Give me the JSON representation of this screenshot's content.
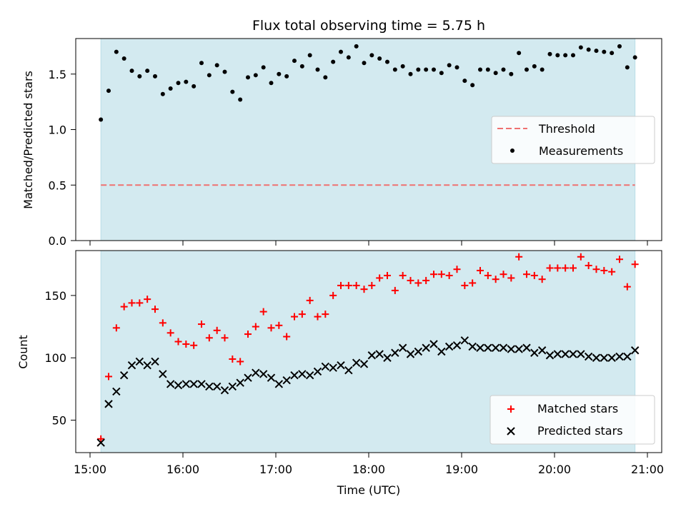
{
  "chart_data": [
    {
      "type": "scatter",
      "title": "Flux total observing time = 5.75 h",
      "ylabel": "Matched/Predicted stars",
      "xlabel": "",
      "xlim": [
        "15:00",
        "21:00"
      ],
      "ylim": [
        0,
        1.82
      ],
      "yticks": [
        "0.0",
        "0.5",
        "1.0",
        "1.5"
      ],
      "grid": false,
      "legend_position": "center-right",
      "shaded_interval": [
        "15:07",
        "20:52"
      ],
      "shade_color": "#d3eaf0",
      "threshold": {
        "name": "Threshold",
        "value": 0.5,
        "color": "#ef7171",
        "style": "dashed"
      },
      "series": [
        {
          "name": "Measurements",
          "color": "#000000",
          "marker": "dot",
          "x": [
            "15:07",
            "15:12",
            "15:17",
            "15:22",
            "15:27",
            "15:32",
            "15:37",
            "15:42",
            "15:47",
            "15:52",
            "15:57",
            "16:02",
            "16:07",
            "16:12",
            "16:17",
            "16:22",
            "16:27",
            "16:32",
            "16:37",
            "16:42",
            "16:47",
            "16:52",
            "16:57",
            "17:02",
            "17:07",
            "17:12",
            "17:17",
            "17:22",
            "17:27",
            "17:32",
            "17:37",
            "17:42",
            "17:47",
            "17:52",
            "17:57",
            "18:02",
            "18:07",
            "18:12",
            "18:17",
            "18:22",
            "18:27",
            "18:32",
            "18:37",
            "18:42",
            "18:47",
            "18:52",
            "18:57",
            "19:02",
            "19:07",
            "19:12",
            "19:17",
            "19:22",
            "19:27",
            "19:32",
            "19:37",
            "19:42",
            "19:47",
            "19:52",
            "19:57",
            "20:02",
            "20:07",
            "20:12",
            "20:17",
            "20:22",
            "20:27",
            "20:32",
            "20:37",
            "20:42",
            "20:47",
            "20:52"
          ],
          "values": [
            1.09,
            1.35,
            1.7,
            1.64,
            1.53,
            1.48,
            1.53,
            1.48,
            1.32,
            1.37,
            1.42,
            1.43,
            1.39,
            1.6,
            1.49,
            1.58,
            1.52,
            1.34,
            1.27,
            1.47,
            1.49,
            1.56,
            1.42,
            1.5,
            1.48,
            1.62,
            1.57,
            1.67,
            1.54,
            1.47,
            1.61,
            1.7,
            1.65,
            1.75,
            1.6,
            1.67,
            1.64,
            1.61,
            1.54,
            1.57,
            1.5,
            1.54,
            1.54,
            1.54,
            1.51,
            1.58,
            1.56,
            1.44,
            1.4,
            1.54,
            1.54,
            1.51,
            1.54,
            1.5,
            1.69,
            1.54,
            1.57,
            1.54,
            1.68,
            1.67,
            1.67,
            1.67,
            1.74,
            1.72,
            1.71,
            1.7,
            1.69,
            1.75,
            1.56,
            1.65
          ]
        }
      ]
    },
    {
      "type": "scatter",
      "title": "",
      "xlabel": "Time (UTC)",
      "ylabel": "Count",
      "xlim": [
        "15:00",
        "21:00"
      ],
      "xticks": [
        "15:00",
        "16:00",
        "17:00",
        "18:00",
        "19:00",
        "20:00",
        "21:00"
      ],
      "ylim": [
        24,
        186
      ],
      "yticks": [
        "50",
        "100",
        "150"
      ],
      "grid": false,
      "legend_position": "bottom-right",
      "shaded_interval": [
        "15:07",
        "20:52"
      ],
      "shade_color": "#d3eaf0",
      "series": [
        {
          "name": "Matched stars",
          "color": "#ff0000",
          "marker": "plus",
          "x": [
            "15:07",
            "15:12",
            "15:17",
            "15:22",
            "15:27",
            "15:32",
            "15:37",
            "15:42",
            "15:47",
            "15:52",
            "15:57",
            "16:02",
            "16:07",
            "16:12",
            "16:17",
            "16:22",
            "16:27",
            "16:32",
            "16:37",
            "16:42",
            "16:47",
            "16:52",
            "16:57",
            "17:02",
            "17:07",
            "17:12",
            "17:17",
            "17:22",
            "17:27",
            "17:32",
            "17:37",
            "17:42",
            "17:47",
            "17:52",
            "17:57",
            "18:02",
            "18:07",
            "18:12",
            "18:17",
            "18:22",
            "18:27",
            "18:32",
            "18:37",
            "18:42",
            "18:47",
            "18:52",
            "18:57",
            "19:02",
            "19:07",
            "19:12",
            "19:17",
            "19:22",
            "19:27",
            "19:32",
            "19:37",
            "19:42",
            "19:47",
            "19:52",
            "19:57",
            "20:02",
            "20:07",
            "20:12",
            "20:17",
            "20:22",
            "20:27",
            "20:32",
            "20:37",
            "20:42",
            "20:47",
            "20:52"
          ],
          "values": [
            35,
            85,
            124,
            141,
            144,
            144,
            147,
            139,
            128,
            120,
            113,
            111,
            110,
            127,
            116,
            122,
            116,
            99,
            97,
            119,
            125,
            137,
            124,
            126,
            117,
            133,
            135,
            146,
            133,
            135,
            150,
            158,
            158,
            158,
            155,
            158,
            164,
            166,
            154,
            166,
            162,
            160,
            162,
            167,
            167,
            166,
            171,
            158,
            160,
            170,
            166,
            163,
            167,
            164,
            181,
            167,
            166,
            163,
            172,
            172,
            172,
            172,
            181,
            174,
            171,
            170,
            169,
            179,
            157,
            175
          ]
        },
        {
          "name": "Predicted stars",
          "color": "#000000",
          "marker": "x",
          "x": [
            "15:07",
            "15:12",
            "15:17",
            "15:22",
            "15:27",
            "15:32",
            "15:37",
            "15:42",
            "15:47",
            "15:52",
            "15:57",
            "16:02",
            "16:07",
            "16:12",
            "16:17",
            "16:22",
            "16:27",
            "16:32",
            "16:37",
            "16:42",
            "16:47",
            "16:52",
            "16:57",
            "17:02",
            "17:07",
            "17:12",
            "17:17",
            "17:22",
            "17:27",
            "17:32",
            "17:37",
            "17:42",
            "17:47",
            "17:52",
            "17:57",
            "18:02",
            "18:07",
            "18:12",
            "18:17",
            "18:22",
            "18:27",
            "18:32",
            "18:37",
            "18:42",
            "18:47",
            "18:52",
            "18:57",
            "19:02",
            "19:07",
            "19:12",
            "19:17",
            "19:22",
            "19:27",
            "19:32",
            "19:37",
            "19:42",
            "19:47",
            "19:52",
            "19:57",
            "20:02",
            "20:07",
            "20:12",
            "20:17",
            "20:22",
            "20:27",
            "20:32",
            "20:37",
            "20:42",
            "20:47",
            "20:52"
          ],
          "values": [
            32,
            63,
            73,
            86,
            94,
            97,
            94,
            97,
            87,
            79,
            78,
            79,
            79,
            79,
            77,
            77,
            74,
            77,
            80,
            84,
            88,
            87,
            84,
            79,
            82,
            86,
            87,
            86,
            89,
            93,
            92,
            94,
            90,
            96,
            95,
            102,
            103,
            100,
            104,
            108,
            103,
            105,
            108,
            111,
            105,
            109,
            110,
            114,
            109,
            108,
            108,
            108,
            108,
            107,
            107,
            108,
            104,
            106,
            102,
            103,
            103,
            103,
            103,
            101,
            100,
            100,
            100,
            101,
            101,
            106
          ]
        }
      ]
    }
  ]
}
